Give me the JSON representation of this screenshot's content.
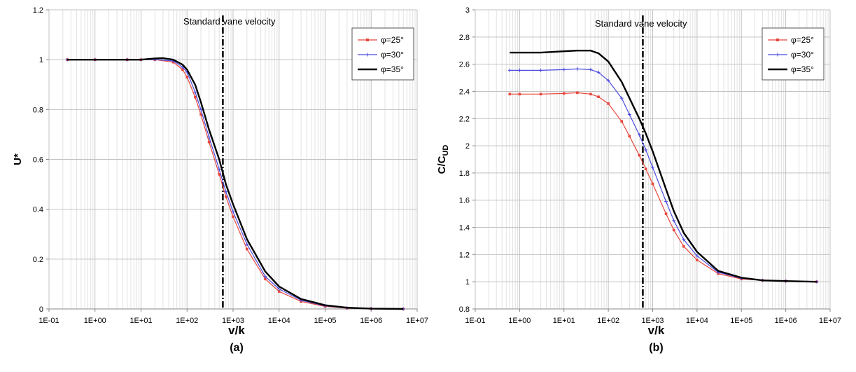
{
  "chart_data": [
    {
      "type": "line",
      "panel_label": "(a)",
      "xlabel": "v/k",
      "ylabel": "U*",
      "ylabel_sub": "",
      "x_scale": "log",
      "xlim": [
        0.1,
        10000000
      ],
      "ylim": [
        0,
        1.2
      ],
      "y_ticks": [
        0,
        0.2,
        0.4,
        0.6,
        0.8,
        1,
        1.2
      ],
      "x_tick_labels": [
        "1E-01",
        "1E+00",
        "1E+01",
        "1E+02",
        "1E+03",
        "1E+04",
        "1E+05",
        "1E+06",
        "1E+07"
      ],
      "grid": true,
      "legend_position": "top-right",
      "vertical_line": {
        "x": 600,
        "style": "dash-dot",
        "label": "Standard vane velocity"
      },
      "series": [
        {
          "name": "φ=25°",
          "color": "#e8463c",
          "marker": "square",
          "x": [
            0.25,
            1,
            5,
            10,
            20,
            50,
            80,
            100,
            150,
            200,
            300,
            500,
            700,
            1000,
            2000,
            5000,
            10000,
            30000,
            100000,
            300000,
            1000000,
            5000000
          ],
          "y": [
            1.0,
            1.0,
            1.0,
            1.0,
            1.0,
            0.99,
            0.96,
            0.93,
            0.85,
            0.78,
            0.67,
            0.54,
            0.45,
            0.37,
            0.24,
            0.12,
            0.07,
            0.03,
            0.01,
            0.003,
            0.001,
            0.0
          ]
        },
        {
          "name": "φ=30°",
          "color": "#4a4adf",
          "marker": "plus",
          "x": [
            0.25,
            1,
            5,
            10,
            20,
            50,
            80,
            100,
            150,
            200,
            300,
            500,
            700,
            1000,
            2000,
            5000,
            10000,
            30000,
            100000,
            300000,
            1000000,
            5000000
          ],
          "y": [
            1.0,
            1.0,
            1.0,
            1.0,
            1.0,
            0.995,
            0.97,
            0.95,
            0.87,
            0.8,
            0.69,
            0.56,
            0.47,
            0.39,
            0.26,
            0.13,
            0.08,
            0.035,
            0.012,
            0.004,
            0.001,
            0.0
          ]
        },
        {
          "name": "φ=35°",
          "color": "#000000",
          "marker": "none",
          "x": [
            0.25,
            1,
            5,
            10,
            20,
            30,
            50,
            80,
            100,
            150,
            200,
            300,
            500,
            700,
            1000,
            2000,
            5000,
            10000,
            30000,
            100000,
            300000,
            1000000,
            5000000
          ],
          "y": [
            1.0,
            1.0,
            1.0,
            1.0,
            1.005,
            1.006,
            1.0,
            0.98,
            0.96,
            0.9,
            0.83,
            0.72,
            0.6,
            0.5,
            0.42,
            0.28,
            0.15,
            0.09,
            0.04,
            0.015,
            0.005,
            0.001,
            0.0
          ]
        }
      ]
    },
    {
      "type": "line",
      "panel_label": "(b)",
      "xlabel": "v/k",
      "ylabel": "C/C",
      "ylabel_sub": "UD",
      "x_scale": "log",
      "xlim": [
        0.1,
        10000000
      ],
      "ylim": [
        0.8,
        3
      ],
      "y_ticks": [
        0.8,
        1,
        1.2,
        1.4,
        1.6,
        1.8,
        2,
        2.2,
        2.4,
        2.6,
        2.8,
        3
      ],
      "x_tick_labels": [
        "1E-01",
        "1E+00",
        "1E+01",
        "1E+02",
        "1E+03",
        "1E+04",
        "1E+05",
        "1E+06",
        "1E+07"
      ],
      "grid": true,
      "legend_position": "top-right",
      "vertical_line": {
        "x": 600,
        "style": "dash-dot",
        "label": "Standard vane velocity"
      },
      "series": [
        {
          "name": "φ=25°",
          "color": "#e8463c",
          "marker": "square",
          "x": [
            0.6,
            1,
            3,
            10,
            20,
            40,
            60,
            100,
            200,
            300,
            500,
            700,
            1000,
            2000,
            3000,
            5000,
            10000,
            30000,
            100000,
            300000,
            1000000,
            5000000
          ],
          "y": [
            2.38,
            2.38,
            2.38,
            2.385,
            2.39,
            2.38,
            2.36,
            2.31,
            2.18,
            2.07,
            1.93,
            1.83,
            1.72,
            1.5,
            1.38,
            1.26,
            1.16,
            1.06,
            1.02,
            1.01,
            1.005,
            1.0
          ]
        },
        {
          "name": "φ=30°",
          "color": "#4a4adf",
          "marker": "plus",
          "x": [
            0.6,
            1,
            3,
            10,
            20,
            40,
            60,
            100,
            200,
            300,
            500,
            700,
            1000,
            2000,
            3000,
            5000,
            10000,
            30000,
            100000,
            300000,
            1000000,
            5000000
          ],
          "y": [
            2.555,
            2.555,
            2.555,
            2.56,
            2.565,
            2.56,
            2.54,
            2.48,
            2.35,
            2.23,
            2.08,
            1.97,
            1.84,
            1.59,
            1.45,
            1.31,
            1.19,
            1.07,
            1.025,
            1.01,
            1.005,
            1.0
          ]
        },
        {
          "name": "φ=35°",
          "color": "#000000",
          "marker": "none",
          "x": [
            0.6,
            1,
            3,
            10,
            20,
            40,
            60,
            100,
            200,
            300,
            500,
            700,
            1000,
            2000,
            3000,
            5000,
            10000,
            30000,
            100000,
            300000,
            1000000,
            5000000
          ],
          "y": [
            2.685,
            2.685,
            2.685,
            2.695,
            2.7,
            2.7,
            2.68,
            2.62,
            2.47,
            2.35,
            2.2,
            2.09,
            1.96,
            1.68,
            1.52,
            1.36,
            1.22,
            1.08,
            1.03,
            1.01,
            1.005,
            1.0
          ]
        }
      ]
    }
  ]
}
